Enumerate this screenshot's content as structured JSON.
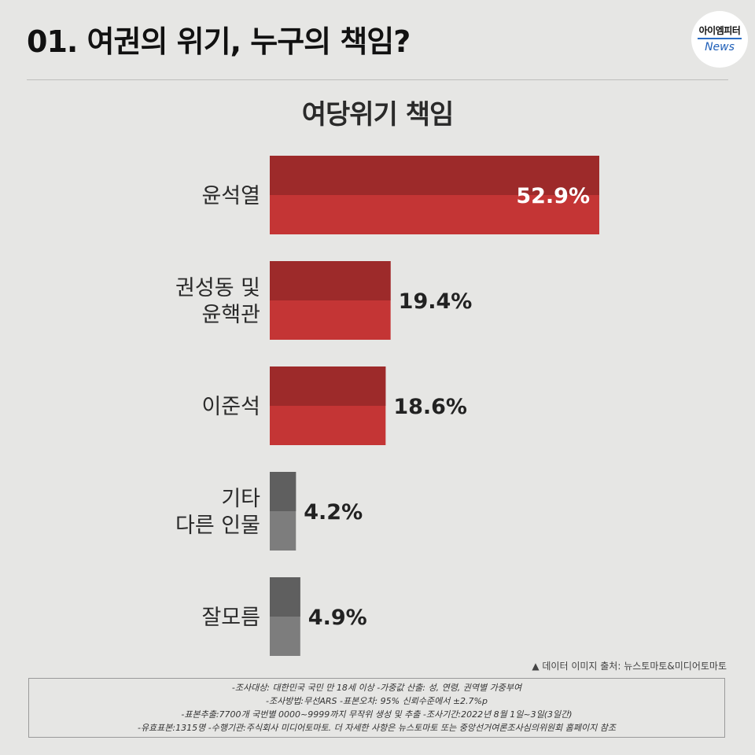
{
  "header": {
    "title": "01. 여권의 위기, 누구의 책임?",
    "logo_top": "아이엠피터",
    "logo_bottom": "News"
  },
  "chart_data": {
    "type": "bar",
    "orientation": "horizontal",
    "title": "여당위기 책임",
    "categories": [
      [
        "윤석열"
      ],
      [
        "권성동 및",
        "윤핵관"
      ],
      [
        "이준석"
      ],
      [
        "기타",
        "다른 인물"
      ],
      [
        "잘모름"
      ]
    ],
    "values": [
      52.9,
      19.4,
      18.6,
      4.2,
      4.9
    ],
    "value_labels": [
      "52.9%",
      "19.4%",
      "18.6%",
      "4.2%",
      "4.9%"
    ],
    "colors": [
      "#c43535",
      "#c43535",
      "#c43535",
      "#7d7d7d",
      "#7d7d7d"
    ],
    "xlim": [
      0,
      52.9
    ],
    "grid": false,
    "legend": "none"
  },
  "source": "▲ 데이터 이미지 출처: 뉴스토마토&미디어토마토",
  "notes": [
    "-조사대상: 대한민국 국민 만 18세 이상  -가중값 산출: 성, 연령, 권역별 가중부여",
    "-조사방법:무선ARS -표본오차: 95% 신뢰수준에서 ±2.7%p",
    "-표본추출:7700개 국번별 0000~9999까지 무작위 생성 및 추출 -조사기간:2022년 8월 1일~3일(3일간)",
    "-유효표본:1315명 -수행기관:주식회사 미디어토마토. 더 자세한 사항은 뉴스토마토 또는 중앙선거여론조사심의위원회 홈페이지 참조"
  ]
}
